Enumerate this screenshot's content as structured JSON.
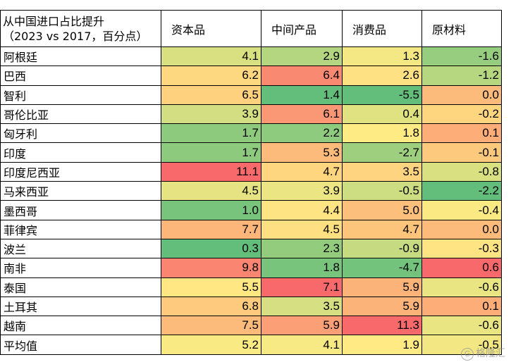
{
  "chart_data": {
    "type": "table",
    "title_line1": "从中国进口占比提升",
    "title_line2": "（2023 vs 2017，百分点）",
    "columns": [
      "资本品",
      "中间产品",
      "消费品",
      "原材料"
    ],
    "rows": [
      {
        "name": "阿根廷",
        "values": [
          "4.1",
          "2.9",
          "1.3",
          "-1.6"
        ]
      },
      {
        "name": "巴西",
        "values": [
          "6.2",
          "6.4",
          "2.6",
          "-1.2"
        ]
      },
      {
        "name": "智利",
        "values": [
          "6.5",
          "1.4",
          "-5.5",
          "0.0"
        ]
      },
      {
        "name": "哥伦比亚",
        "values": [
          "3.9",
          "6.1",
          "0.4",
          "-0.2"
        ]
      },
      {
        "name": "匈牙利",
        "values": [
          "1.7",
          "2.2",
          "1.8",
          "0.1"
        ]
      },
      {
        "name": "印度",
        "values": [
          "1.7",
          "5.3",
          "-2.7",
          "-0.1"
        ]
      },
      {
        "name": "印度尼西亚",
        "values": [
          "11.1",
          "4.7",
          "3.5",
          "-0.8"
        ]
      },
      {
        "name": "马来西亚",
        "values": [
          "4.5",
          "3.9",
          "-0.5",
          "-2.2"
        ]
      },
      {
        "name": "墨西哥",
        "values": [
          "1.0",
          "4.4",
          "5.0",
          "-0.4"
        ]
      },
      {
        "name": "菲律宾",
        "values": [
          "7.7",
          "4.5",
          "4.7",
          "0.0"
        ]
      },
      {
        "name": "波兰",
        "values": [
          "0.3",
          "2.3",
          "-0.9",
          "-0.3"
        ]
      },
      {
        "name": "南非",
        "values": [
          "9.8",
          "1.8",
          "-4.7",
          "0.6"
        ]
      },
      {
        "name": "泰国",
        "values": [
          "5.5",
          "7.1",
          "5.9",
          "-0.6"
        ]
      },
      {
        "name": "土耳其",
        "values": [
          "6.8",
          "3.5",
          "5.9",
          "0.1"
        ]
      },
      {
        "name": "越南",
        "values": [
          "7.5",
          "5.9",
          "11.3",
          "-0.6"
        ]
      },
      {
        "name": "平均值",
        "values": [
          "5.2",
          "4.1",
          "1.9",
          "-0.5"
        ]
      }
    ],
    "color_scale": {
      "low": "#63be7b",
      "mid": "#ffeb84",
      "high": "#f8696b"
    }
  },
  "watermark": "格隆汇"
}
